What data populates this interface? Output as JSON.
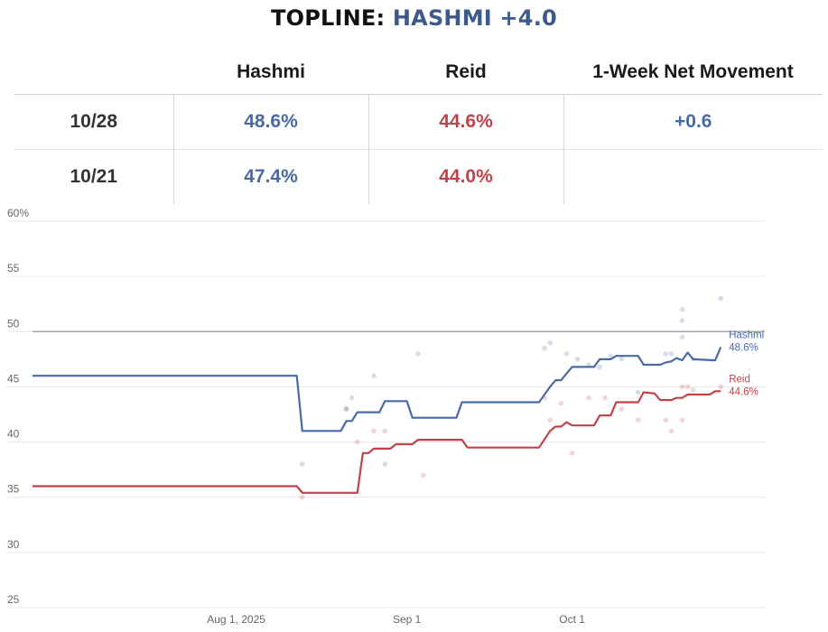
{
  "header": {
    "prefix": "TOPLINE:",
    "highlight": "HASHMI +4.0"
  },
  "table": {
    "columns": [
      "",
      "Hashmi",
      "Reid",
      "1-Week Net Movement"
    ],
    "rows": [
      {
        "date": "10/28",
        "hashmi": "48.6%",
        "reid": "44.6%",
        "net": "+0.6"
      },
      {
        "date": "10/21",
        "hashmi": "47.4%",
        "reid": "44.0%",
        "net": ""
      }
    ]
  },
  "colors": {
    "hashmi": "#4a6aa5",
    "reid": "#c0424a",
    "grid": "#e6e6e6",
    "fifty_line": "#999999"
  },
  "chart_data": {
    "type": "line",
    "title": "",
    "xlabel": "",
    "ylabel": "",
    "ylim": [
      25,
      60
    ],
    "yticks": [
      25,
      30,
      35,
      40,
      45,
      50,
      55,
      60
    ],
    "ytick_labels": [
      "25",
      "30",
      "35",
      "40",
      "45",
      "50",
      "55",
      "60%"
    ],
    "x_domain_days": [
      0,
      133
    ],
    "xticks": [
      {
        "day": 37,
        "label": "Aug 1, 2025"
      },
      {
        "day": 68,
        "label": "Sep 1"
      },
      {
        "day": 98,
        "label": "Oct 1"
      }
    ],
    "reference_line": 50,
    "series": [
      {
        "name": "Hashmi",
        "label": "Hashmi",
        "end_label": "48.6%",
        "color": "#4a6aa5",
        "points": [
          [
            0,
            46.0
          ],
          [
            48,
            46.0
          ],
          [
            49,
            41.0
          ],
          [
            55,
            41.0
          ],
          [
            56,
            41.0
          ],
          [
            57,
            41.9
          ],
          [
            58,
            41.9
          ],
          [
            59,
            42.7
          ],
          [
            63,
            42.7
          ],
          [
            64,
            43.7
          ],
          [
            68,
            43.7
          ],
          [
            69,
            42.2
          ],
          [
            77,
            42.2
          ],
          [
            78,
            43.6
          ],
          [
            92,
            43.6
          ],
          [
            94,
            45.0
          ],
          [
            95,
            45.6
          ],
          [
            96,
            45.6
          ],
          [
            98,
            46.8
          ],
          [
            102,
            46.8
          ],
          [
            103,
            47.5
          ],
          [
            105,
            47.5
          ],
          [
            106,
            47.8
          ],
          [
            110,
            47.8
          ],
          [
            111,
            47.0
          ],
          [
            114,
            47.0
          ],
          [
            115,
            47.2
          ],
          [
            116,
            47.3
          ],
          [
            117,
            47.6
          ],
          [
            118,
            47.4
          ],
          [
            119,
            48.1
          ],
          [
            120,
            47.5
          ],
          [
            124,
            47.4
          ],
          [
            125,
            48.6
          ]
        ]
      },
      {
        "name": "Reid",
        "label": "Reid",
        "end_label": "44.6%",
        "color": "#c0424a",
        "points": [
          [
            0,
            36.0
          ],
          [
            48,
            36.0
          ],
          [
            49,
            35.4
          ],
          [
            59,
            35.4
          ],
          [
            60,
            39.0
          ],
          [
            61,
            39.0
          ],
          [
            62,
            39.4
          ],
          [
            65,
            39.4
          ],
          [
            66,
            39.8
          ],
          [
            69,
            39.8
          ],
          [
            70,
            40.2
          ],
          [
            78,
            40.2
          ],
          [
            79,
            39.5
          ],
          [
            92,
            39.5
          ],
          [
            94,
            41.0
          ],
          [
            95,
            41.4
          ],
          [
            96,
            41.4
          ],
          [
            97,
            41.8
          ],
          [
            98,
            41.5
          ],
          [
            102,
            41.5
          ],
          [
            103,
            42.4
          ],
          [
            105,
            42.4
          ],
          [
            106,
            43.6
          ],
          [
            110,
            43.6
          ],
          [
            111,
            44.5
          ],
          [
            113,
            44.4
          ],
          [
            114,
            43.8
          ],
          [
            116,
            43.8
          ],
          [
            117,
            44.0
          ],
          [
            118,
            44.0
          ],
          [
            119,
            44.3
          ],
          [
            123,
            44.3
          ],
          [
            124,
            44.6
          ],
          [
            125,
            44.6
          ]
        ]
      }
    ],
    "scatter": {
      "hashmi": [
        [
          49,
          38
        ],
        [
          57,
          43
        ],
        [
          58,
          44
        ],
        [
          62,
          46
        ],
        [
          64,
          38
        ],
        [
          70,
          48
        ],
        [
          93,
          48.5
        ],
        [
          94,
          49
        ],
        [
          97,
          48
        ],
        [
          99,
          47.5
        ],
        [
          101,
          47
        ],
        [
          103,
          46.8
        ],
        [
          105,
          47.8
        ],
        [
          107,
          47.5
        ],
        [
          110,
          44.5
        ],
        [
          115,
          48
        ],
        [
          116,
          48
        ],
        [
          118,
          52
        ],
        [
          118,
          51
        ],
        [
          118,
          49.5
        ],
        [
          120,
          47.5
        ],
        [
          125,
          53
        ]
      ],
      "reid": [
        [
          49,
          35
        ],
        [
          57,
          43
        ],
        [
          59,
          40
        ],
        [
          62,
          41
        ],
        [
          64,
          41
        ],
        [
          71,
          37
        ],
        [
          93,
          44
        ],
        [
          94,
          42
        ],
        [
          96,
          43.5
        ],
        [
          98,
          39
        ],
        [
          101,
          44
        ],
        [
          104,
          44
        ],
        [
          107,
          43
        ],
        [
          110,
          42
        ],
        [
          115,
          42
        ],
        [
          116,
          41
        ],
        [
          118,
          45
        ],
        [
          118,
          42
        ],
        [
          119,
          45
        ],
        [
          120,
          44.7
        ],
        [
          125,
          45
        ]
      ]
    }
  }
}
